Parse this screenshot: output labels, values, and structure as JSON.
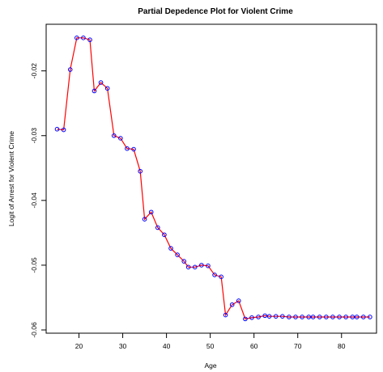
{
  "chart_data": {
    "type": "line",
    "title": "Partial Depedence Plot for Violent Crime",
    "xlabel": "Age",
    "ylabel": "Logit of Arrest for Violent Crime",
    "xlim": [
      12.5,
      88
    ],
    "ylim": [
      -0.0605,
      -0.0128
    ],
    "xticks": [
      20,
      30,
      40,
      50,
      60,
      70,
      80
    ],
    "xtick_labels": [
      "20",
      "30",
      "40",
      "50",
      "60",
      "70",
      "80"
    ],
    "yticks": [
      -0.06,
      -0.05,
      -0.04,
      -0.03,
      -0.02
    ],
    "ytick_labels": [
      "-0.06",
      "-0.05",
      "-0.04",
      "-0.03",
      "-0.02"
    ],
    "grid": false,
    "legend": "none",
    "line_color": "#ff0000",
    "point_color": "#0000ff",
    "series": [
      {
        "x": [
          15,
          16.5,
          18,
          19.5,
          21,
          22.5,
          23.5,
          25,
          26.5,
          28,
          29.5,
          31,
          32.5,
          34,
          35,
          36.5,
          38,
          39.5,
          41,
          42.5,
          44,
          45,
          46.5,
          48,
          49.5,
          51,
          52.5,
          53.5,
          55,
          56.5,
          58,
          59.5,
          61,
          62.5,
          63.5,
          65,
          66.5,
          68,
          69.5,
          71,
          72.5,
          73.5,
          75,
          76.5,
          78,
          79.5,
          81,
          82.5,
          83.5,
          85,
          86.5
        ],
        "y": [
          -0.029,
          -0.0291,
          -0.0198,
          -0.0149,
          -0.0149,
          -0.0152,
          -0.0231,
          -0.0218,
          -0.0227,
          -0.03,
          -0.0304,
          -0.032,
          -0.0321,
          -0.0355,
          -0.0429,
          -0.0418,
          -0.0442,
          -0.0453,
          -0.0474,
          -0.0484,
          -0.0494,
          -0.0503,
          -0.0503,
          -0.05,
          -0.0501,
          -0.0515,
          -0.0518,
          -0.0577,
          -0.0561,
          -0.0555,
          -0.0583,
          -0.0581,
          -0.058,
          -0.0578,
          -0.0579,
          -0.0579,
          -0.0579,
          -0.058,
          -0.058,
          -0.058,
          -0.058,
          -0.058,
          -0.058,
          -0.058,
          -0.058,
          -0.058,
          -0.058,
          -0.058,
          -0.058,
          -0.058,
          -0.058
        ]
      }
    ]
  }
}
